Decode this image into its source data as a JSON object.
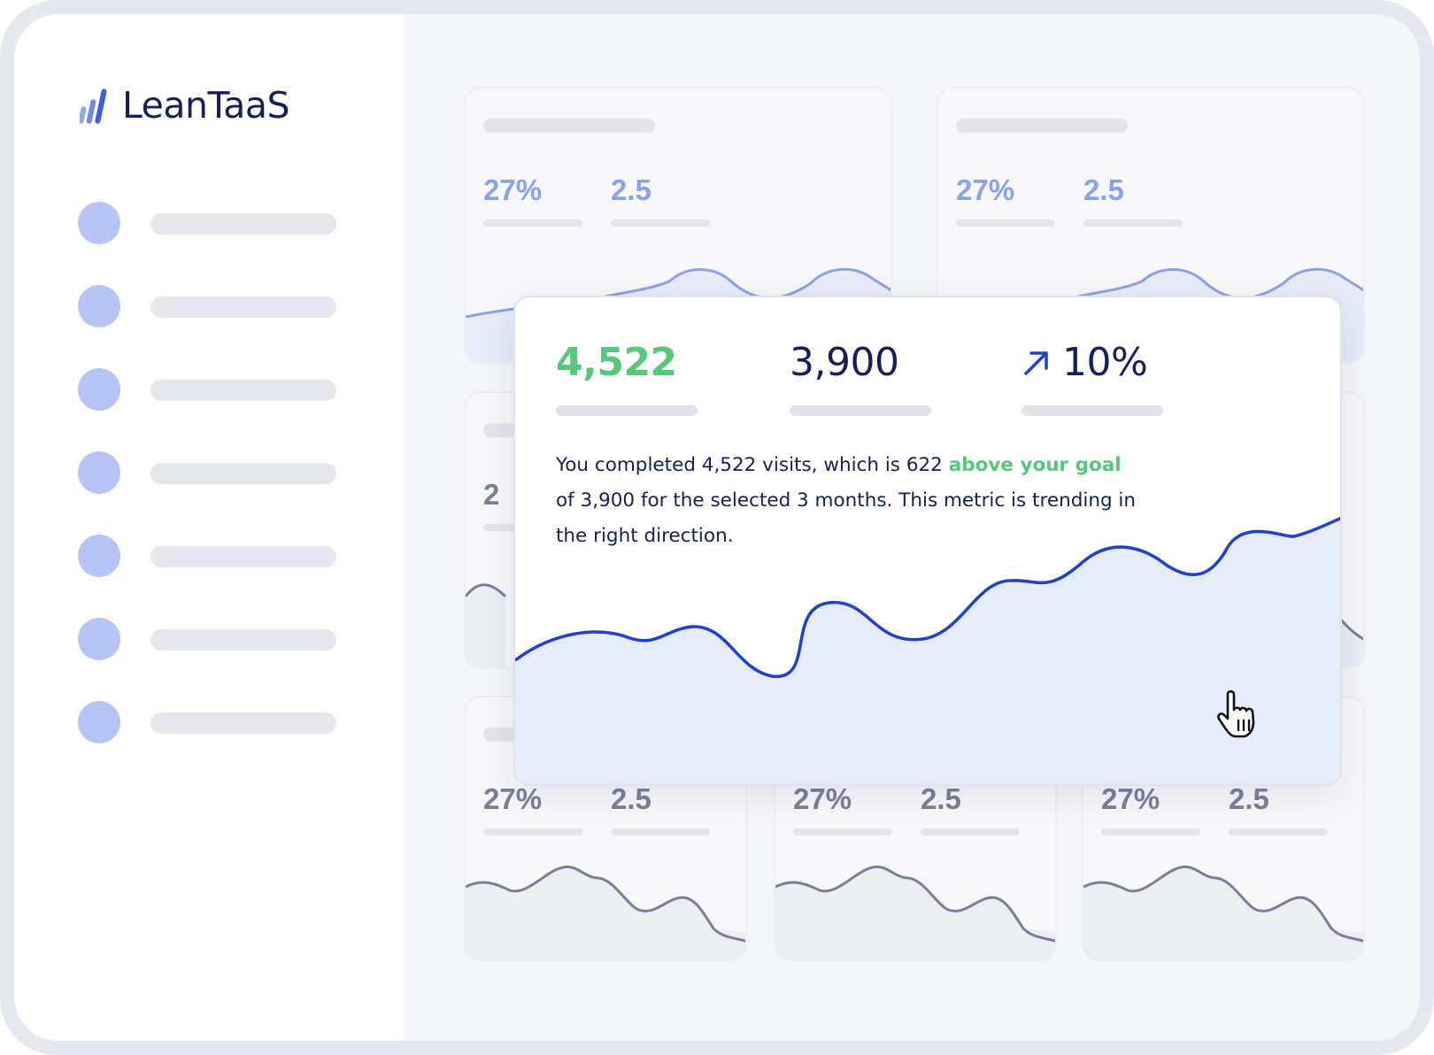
{
  "app": {
    "logo_text": "LeanTaaS"
  },
  "sidebar": {
    "items": 7
  },
  "cards": {
    "stat_primary": "27%",
    "stat_secondary": "2.5",
    "peek_stat": "2"
  },
  "popup": {
    "completed_value": "4,522",
    "goal_value": "3,900",
    "trend_value": "10%",
    "trend_icon": "arrow-up-right-icon",
    "summary_part1": "You completed 4,522 visits, which is 622 ",
    "summary_highlight": "above your goal",
    "summary_part2": " of 3,900 for the selected 3 months. This metric is trending in the right direction.",
    "cursor_icon": "hand-pointer-icon"
  },
  "colors": {
    "brand_navy": "#142057",
    "accent_blue": "#1f40d1",
    "positive_green": "#57c77a",
    "chart_fill": "#e6ecfa",
    "placeholder": "#e4e5ea"
  }
}
